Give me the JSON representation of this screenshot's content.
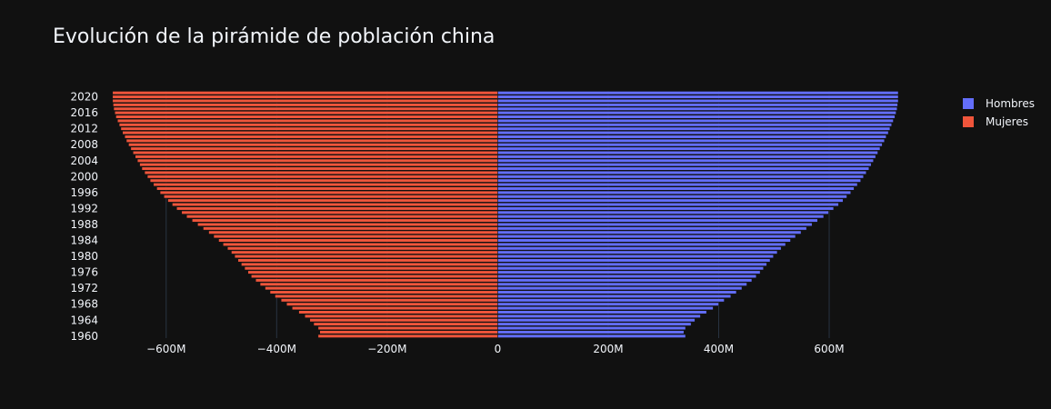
{
  "chart_data": {
    "type": "bar",
    "orientation": "horizontal",
    "title": "Evolución de la pirámide de población china",
    "xlabel": "",
    "ylabel": "",
    "xlim": [
      -700,
      725
    ],
    "x_ticks": [
      -600,
      -400,
      -200,
      0,
      200,
      400,
      600
    ],
    "x_tick_labels": [
      "−600M",
      "−400M",
      "−200M",
      "0",
      "200M",
      "400M",
      "600M"
    ],
    "y_ticks": [
      1960,
      1964,
      1968,
      1972,
      1976,
      1980,
      1984,
      1988,
      1992,
      1996,
      2000,
      2004,
      2008,
      2012,
      2016,
      2020
    ],
    "y_tick_labels": [
      "1960",
      "1964",
      "1968",
      "1972",
      "1976",
      "1980",
      "1984",
      "1988",
      "1992",
      "1996",
      "2000",
      "2004",
      "2008",
      "2012",
      "2016",
      "2020"
    ],
    "legend_position": "top-right",
    "categories": [
      1960,
      1961,
      1962,
      1963,
      1964,
      1965,
      1966,
      1967,
      1968,
      1969,
      1970,
      1971,
      1972,
      1973,
      1974,
      1975,
      1976,
      1977,
      1978,
      1979,
      1980,
      1981,
      1982,
      1983,
      1984,
      1985,
      1986,
      1987,
      1988,
      1989,
      1990,
      1991,
      1992,
      1993,
      1994,
      1995,
      1996,
      1997,
      1998,
      1999,
      2000,
      2001,
      2002,
      2003,
      2004,
      2005,
      2006,
      2007,
      2008,
      2009,
      2010,
      2011,
      2012,
      2013,
      2014,
      2015,
      2016,
      2017,
      2018,
      2019,
      2020,
      2021
    ],
    "series": [
      {
        "name": "Hombres",
        "color": "#636efa",
        "values": [
          340,
          337,
          340,
          350,
          357,
          367,
          378,
          390,
          400,
          410,
          422,
          432,
          442,
          451,
          460,
          468,
          475,
          481,
          487,
          493,
          499,
          506,
          513,
          521,
          530,
          539,
          549,
          559,
          569,
          579,
          590,
          599,
          608,
          617,
          625,
          632,
          639,
          645,
          651,
          657,
          662,
          667,
          672,
          676,
          680,
          684,
          688,
          692,
          696,
          700,
          703,
          707,
          710,
          713,
          716,
          719,
          721,
          723,
          724,
          725,
          725,
          725
        ]
      },
      {
        "name": "Mujeres",
        "color": "#ef553b",
        "values": [
          -325,
          -322,
          -325,
          -333,
          -340,
          -349,
          -360,
          -372,
          -382,
          -392,
          -403,
          -412,
          -421,
          -430,
          -438,
          -446,
          -452,
          -458,
          -464,
          -470,
          -476,
          -482,
          -489,
          -497,
          -505,
          -514,
          -523,
          -533,
          -543,
          -553,
          -563,
          -572,
          -581,
          -589,
          -597,
          -604,
          -611,
          -617,
          -623,
          -629,
          -634,
          -639,
          -644,
          -648,
          -652,
          -656,
          -660,
          -664,
          -668,
          -672,
          -675,
          -679,
          -682,
          -685,
          -688,
          -691,
          -693,
          -695,
          -696,
          -697,
          -697,
          -697
        ]
      }
    ],
    "grid": true
  },
  "colors": {
    "background": "#111111",
    "grid": "#283442",
    "text": "#f2f5fa"
  }
}
